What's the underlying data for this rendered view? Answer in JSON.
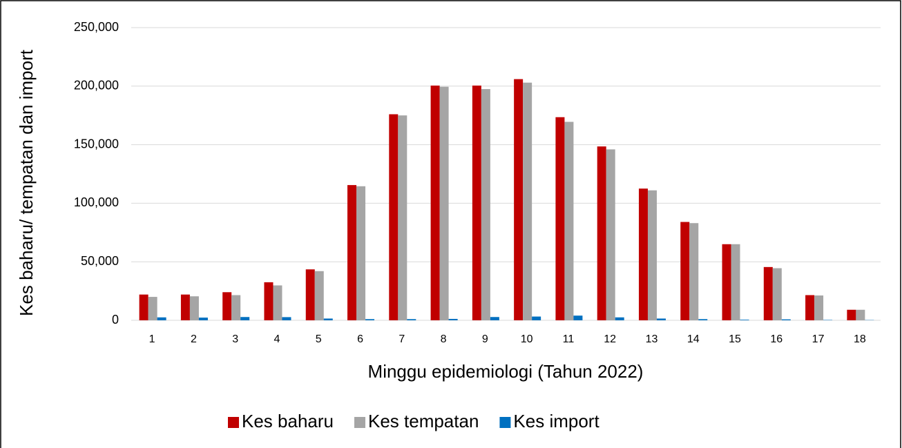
{
  "chart_data": {
    "type": "bar",
    "x_label": "Minggu epidemiologi (Tahun 2022)",
    "y_label": "Kes baharu/ tempatan dan import",
    "categories": [
      "1",
      "2",
      "3",
      "4",
      "5",
      "6",
      "7",
      "8",
      "9",
      "10",
      "11",
      "12",
      "13",
      "14",
      "15",
      "16",
      "17",
      "18"
    ],
    "series": [
      {
        "name": "Kes baharu",
        "color": "#c00000",
        "values": [
          22000,
          22000,
          24000,
          32500,
          43500,
          115500,
          176000,
          200500,
          200500,
          206000,
          173500,
          148500,
          112500,
          84000,
          65000,
          45500,
          21500,
          9000
        ]
      },
      {
        "name": "Kes tempatan",
        "color": "#a5a5a5",
        "values": [
          20000,
          20500,
          21500,
          29800,
          42000,
          114500,
          175000,
          199500,
          197500,
          203000,
          169500,
          146000,
          111000,
          83000,
          65000,
          44500,
          21200,
          9000
        ]
      },
      {
        "name": "Kes import",
        "color": "#0070c0",
        "values": [
          2500,
          2300,
          2800,
          2700,
          1500,
          1000,
          1000,
          1200,
          2800,
          3200,
          4000,
          2500,
          1500,
          1000,
          500,
          800,
          300,
          200
        ]
      }
    ],
    "ylim": [
      0,
      250000
    ],
    "yticks": [
      0,
      {
        "value": 50000,
        "label": "50,000"
      },
      {
        "value": 100000,
        "label": "100,000"
      },
      {
        "value": 150000,
        "label": "150,000"
      },
      {
        "value": 200000,
        "label": "200,000"
      },
      {
        "value": 250000,
        "label": "250,000"
      }
    ],
    "grid": true,
    "legend": "bottom"
  }
}
